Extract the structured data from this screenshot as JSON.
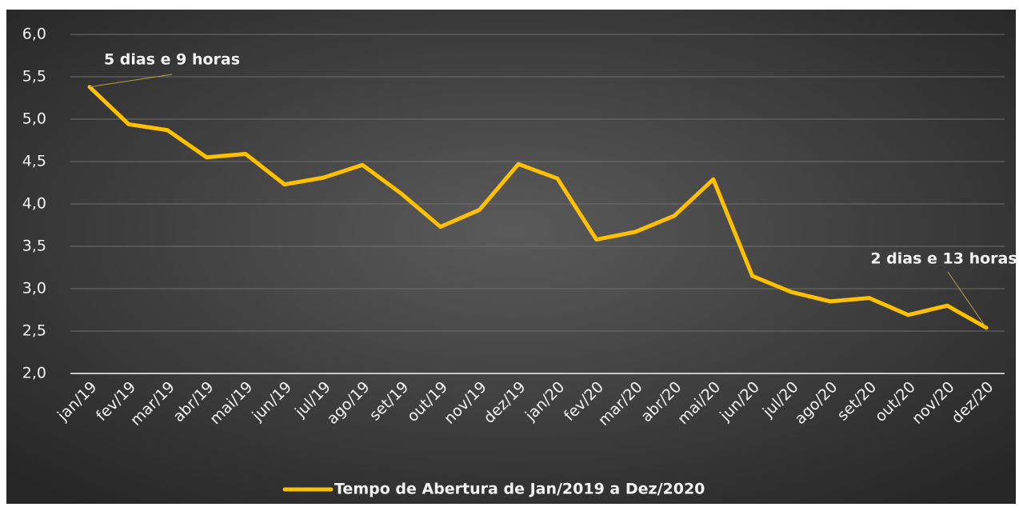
{
  "chart_data": {
    "type": "line",
    "categories": [
      "jan/19",
      "fev/19",
      "mar/19",
      "abr/19",
      "mai/19",
      "jun/19",
      "jul/19",
      "ago/19",
      "set/19",
      "out/19",
      "nov/19",
      "dez/19",
      "jan/20",
      "fev/20",
      "mar/20",
      "abr/20",
      "mai/20",
      "jun/20",
      "jul/20",
      "ago/20",
      "set/20",
      "out/20",
      "nov/20",
      "dez/20"
    ],
    "series": [
      {
        "name": "Tempo de Abertura de Jan/2019 a Dez/2020",
        "color": "#FFC000",
        "values": [
          5.38,
          4.94,
          4.87,
          4.55,
          4.59,
          4.23,
          4.31,
          4.46,
          4.12,
          3.73,
          3.93,
          4.47,
          4.3,
          3.58,
          3.67,
          3.86,
          4.29,
          3.15,
          2.96,
          2.85,
          2.89,
          2.69,
          2.8,
          2.54
        ]
      }
    ],
    "ylim": [
      2.0,
      6.0
    ],
    "yticks": [
      {
        "value": 2.0,
        "label": "2,0"
      },
      {
        "value": 2.5,
        "label": "2,5"
      },
      {
        "value": 3.0,
        "label": "3,0"
      },
      {
        "value": 3.5,
        "label": "3,5"
      },
      {
        "value": 4.0,
        "label": "4,0"
      },
      {
        "value": 4.5,
        "label": "4,5"
      },
      {
        "value": 5.0,
        "label": "5,0"
      },
      {
        "value": 5.5,
        "label": "5,5"
      },
      {
        "value": 6.0,
        "label": "6,0"
      }
    ],
    "grid": true,
    "legend": "bottom",
    "annotations": [
      "5 dias e 9 horas",
      "2 dias e 13 horas"
    ]
  }
}
